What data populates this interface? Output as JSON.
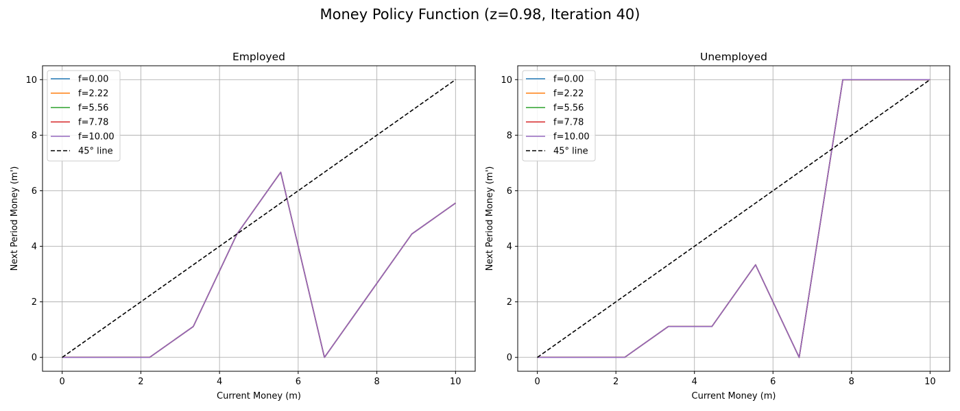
{
  "figure": {
    "title": "Money Policy Function (z=0.98, Iteration 40)"
  },
  "chart_data": [
    {
      "type": "line",
      "title": "Employed",
      "xlabel": "Current Money (m)",
      "ylabel": "Next Period Money (m')",
      "xlim": [
        -0.5,
        10.5
      ],
      "ylim": [
        -0.5,
        10.5
      ],
      "xticks": [
        0,
        2,
        4,
        6,
        8,
        10
      ],
      "yticks": [
        0,
        2,
        4,
        6,
        8,
        10
      ],
      "grid": true,
      "legend_position": "upper left",
      "x": [
        0.0,
        1.111,
        2.222,
        3.333,
        4.444,
        5.556,
        6.667,
        7.778,
        8.889,
        10.0
      ],
      "series": [
        {
          "name": "f=0.00",
          "color": "#1f77b4",
          "style": "solid",
          "values": [
            0.0,
            0.0,
            0.0,
            1.111,
            4.444,
            6.667,
            0.0,
            2.222,
            4.444,
            5.556
          ]
        },
        {
          "name": "f=2.22",
          "color": "#ff7f0e",
          "style": "solid",
          "values": [
            0.0,
            0.0,
            0.0,
            1.111,
            4.444,
            6.667,
            0.0,
            2.222,
            4.444,
            5.556
          ]
        },
        {
          "name": "f=5.56",
          "color": "#2ca02c",
          "style": "solid",
          "values": [
            0.0,
            0.0,
            0.0,
            1.111,
            4.444,
            6.667,
            0.0,
            2.222,
            4.444,
            5.556
          ]
        },
        {
          "name": "f=7.78",
          "color": "#d62728",
          "style": "solid",
          "values": [
            0.0,
            0.0,
            0.0,
            1.111,
            4.444,
            6.667,
            0.0,
            2.222,
            4.444,
            5.556
          ]
        },
        {
          "name": "f=10.00",
          "color": "#9467bd",
          "style": "solid",
          "values": [
            0.0,
            0.0,
            0.0,
            1.111,
            4.444,
            6.667,
            0.0,
            2.222,
            4.444,
            5.556
          ]
        },
        {
          "name": "45° line",
          "color": "#000000",
          "style": "dashed",
          "x": [
            0,
            10
          ],
          "values": [
            0,
            10
          ]
        }
      ]
    },
    {
      "type": "line",
      "title": "Unemployed",
      "xlabel": "Current Money (m)",
      "ylabel": "Next Period Money (m')",
      "xlim": [
        -0.5,
        10.5
      ],
      "ylim": [
        -0.5,
        10.5
      ],
      "xticks": [
        0,
        2,
        4,
        6,
        8,
        10
      ],
      "yticks": [
        0,
        2,
        4,
        6,
        8,
        10
      ],
      "grid": true,
      "legend_position": "upper left",
      "x": [
        0.0,
        1.111,
        2.222,
        3.333,
        4.444,
        5.556,
        6.667,
        7.778,
        8.889,
        10.0
      ],
      "series": [
        {
          "name": "f=0.00",
          "color": "#1f77b4",
          "style": "solid",
          "values": [
            0.0,
            0.0,
            0.0,
            1.111,
            1.111,
            3.333,
            0.0,
            10.0,
            10.0,
            10.0
          ]
        },
        {
          "name": "f=2.22",
          "color": "#ff7f0e",
          "style": "solid",
          "values": [
            0.0,
            0.0,
            0.0,
            1.111,
            1.111,
            3.333,
            0.0,
            10.0,
            10.0,
            10.0
          ]
        },
        {
          "name": "f=5.56",
          "color": "#2ca02c",
          "style": "solid",
          "values": [
            0.0,
            0.0,
            0.0,
            1.111,
            1.111,
            3.333,
            0.0,
            10.0,
            10.0,
            10.0
          ]
        },
        {
          "name": "f=7.78",
          "color": "#d62728",
          "style": "solid",
          "values": [
            0.0,
            0.0,
            0.0,
            1.111,
            1.111,
            3.333,
            0.0,
            10.0,
            10.0,
            10.0
          ]
        },
        {
          "name": "f=10.00",
          "color": "#9467bd",
          "style": "solid",
          "values": [
            0.0,
            0.0,
            0.0,
            1.111,
            1.111,
            3.333,
            0.0,
            10.0,
            10.0,
            10.0
          ]
        },
        {
          "name": "45° line",
          "color": "#000000",
          "style": "dashed",
          "x": [
            0,
            10
          ],
          "values": [
            0,
            10
          ]
        }
      ]
    }
  ]
}
